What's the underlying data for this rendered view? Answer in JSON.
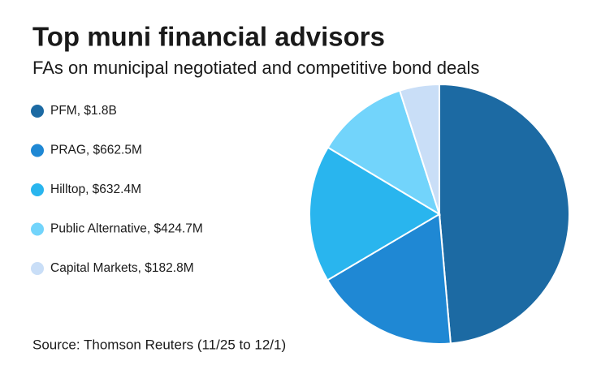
{
  "chart_data": {
    "type": "pie",
    "title": "Top muni financial advisors",
    "subtitle": "FAs on municipal negotiated and competitive bond deals",
    "categories": [
      "PFM, $1.8B",
      "PRAG, $662.5M",
      "Hilltop, $632.4M",
      "Public Alternative, $424.7M",
      "Capital Markets, $182.8M"
    ],
    "values": [
      1800,
      662.5,
      632.4,
      424.7,
      182.8
    ],
    "colors": [
      "#1c6aa3",
      "#1f88d4",
      "#29b5ee",
      "#72d4fb",
      "#c9def7"
    ],
    "source": "Source: Thomson Reuters (11/25 to 12/1)"
  }
}
